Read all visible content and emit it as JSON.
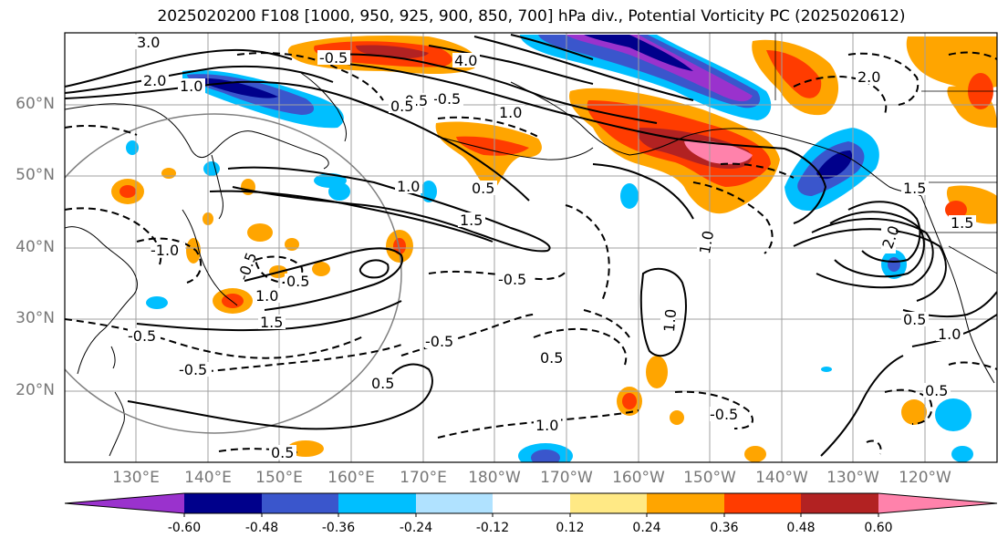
{
  "title": "2025020200 F108 [1000, 950, 925, 900, 850, 700] hPa div., Potential Vorticity PC (2025020612)",
  "lat_labels": [
    "60°N",
    "50°N",
    "40°N",
    "30°N",
    "20°N"
  ],
  "lon_labels": [
    "130°E",
    "140°E",
    "150°E",
    "160°E",
    "170°E",
    "180°W",
    "170°W",
    "160°W",
    "150°W",
    "140°W",
    "130°W",
    "120°W"
  ],
  "contour_labels": [
    "3.0",
    "2.0",
    "1.0",
    "-0.5",
    "4.0",
    "-0.5",
    "1.0",
    "0.5",
    "-0.5",
    "0.5",
    "1.0",
    "1.5",
    "-1.0",
    "-0.5",
    "0.5",
    "1.0",
    "1.5",
    "-0.5",
    "-0.5",
    "0.5",
    "-0.5",
    "1.0",
    "0.5",
    "-0.5",
    "1.0",
    "-0.5",
    "2.0",
    "1.5",
    "0.5",
    "1.0",
    "1.0",
    "0.5",
    "0.5",
    "2.0",
    "1.5"
  ],
  "colorbar": {
    "colors": [
      "#9a32cd",
      "#00008b",
      "#3a56cc",
      "#00bfff",
      "#b0e2ff",
      "#ffffff",
      "#ffe985",
      "#ffa500",
      "#ff3c00",
      "#b22222",
      "#ff82ab"
    ],
    "tick_labels": [
      "-0.60",
      "-0.48",
      "-0.36",
      "-0.24",
      "-0.12",
      "0.12",
      "0.24",
      "0.36",
      "0.48",
      "0.60"
    ]
  },
  "colors": {
    "grid": "#a0a0a0",
    "contour": "#000000",
    "circle": "#808080"
  }
}
